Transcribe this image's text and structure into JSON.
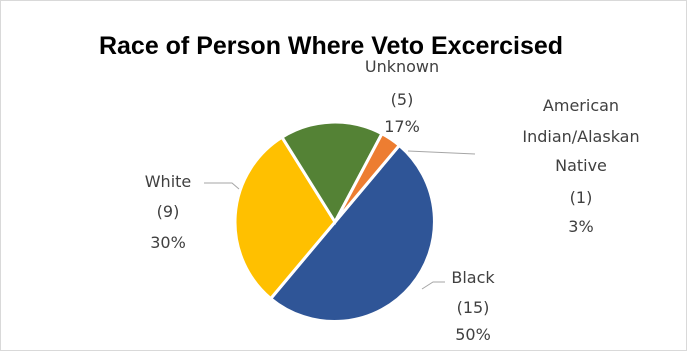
{
  "chart_data": {
    "type": "pie",
    "title": "Race of Person Where Veto Excercised",
    "slices": [
      {
        "name": "Black",
        "count_label": "(15)",
        "percent_label": "50%",
        "value": 15,
        "color": "#2f5597"
      },
      {
        "name": "White",
        "count_label": "(9)",
        "percent_label": "30%",
        "value": 9,
        "color": "#ffc000"
      },
      {
        "name": "Unknown",
        "count_label": "(5)",
        "percent_label": "17%",
        "value": 5,
        "color": "#548235"
      },
      {
        "name": "American Indian/Alaskan Native",
        "name_lines": [
          "American",
          "Indian/Alaskan",
          "Native"
        ],
        "count_label": "(1)",
        "percent_label": "3%",
        "value": 1,
        "color": "#ed7d31"
      }
    ]
  }
}
